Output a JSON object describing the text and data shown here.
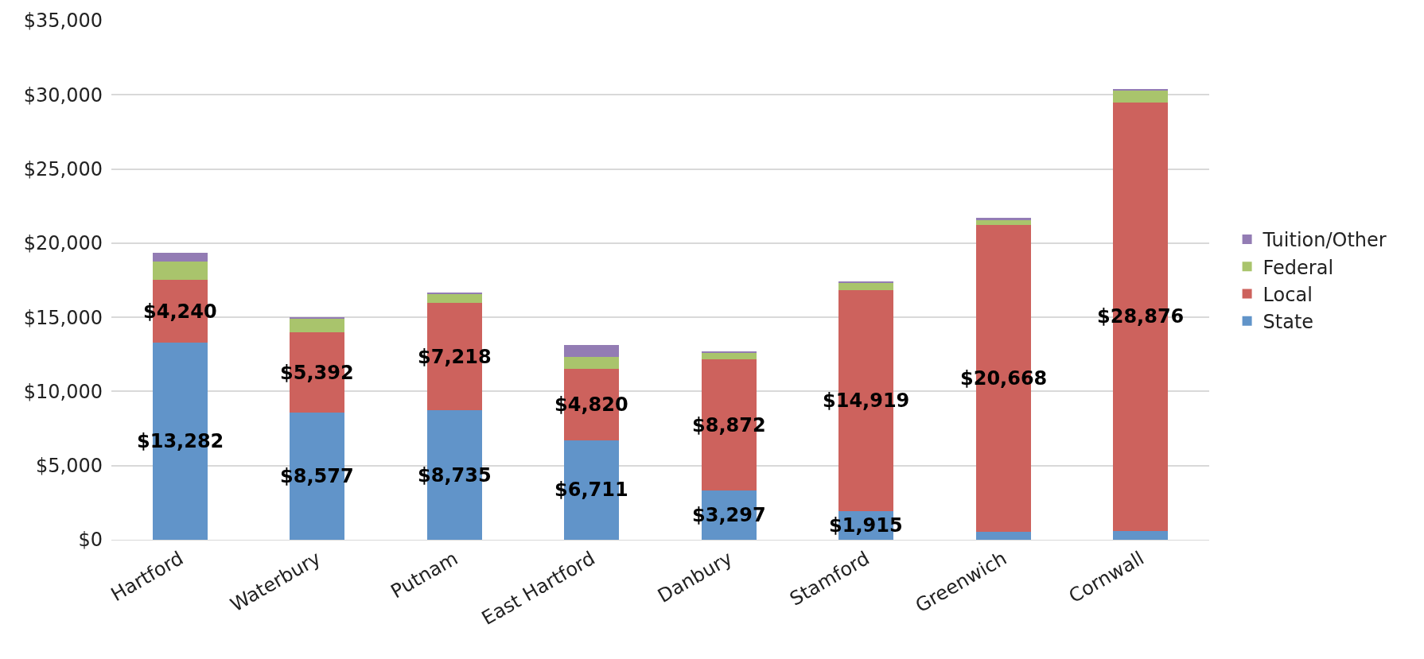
{
  "chart_data": {
    "type": "bar",
    "stacked": true,
    "categories": [
      "Hartford",
      "Waterbury",
      "Putnam",
      "East Hartford",
      "Danbury",
      "Stamford",
      "Greenwich",
      "Cornwall"
    ],
    "series": [
      {
        "name": "State",
        "color": "#6194c9",
        "values": [
          13282,
          8577,
          8735,
          6711,
          3297,
          1915,
          558,
          605
        ],
        "value_labels": [
          "$13,282",
          "$8,577",
          "$8,735",
          "$6,711",
          "$3,297",
          "$1,915",
          null,
          null
        ]
      },
      {
        "name": "Local",
        "color": "#cd625d",
        "values": [
          4240,
          5392,
          7218,
          4820,
          8872,
          14919,
          20668,
          28876
        ],
        "value_labels": [
          "$4,240",
          "$5,392",
          "$7,218",
          "$4,820",
          "$8,872",
          "$14,919",
          "$20,668",
          "$28,876"
        ]
      },
      {
        "name": "Federal",
        "color": "#a9c46c",
        "values": [
          1220,
          930,
          600,
          800,
          430,
          500,
          330,
          850
        ]
      },
      {
        "name": "Tuition/Other",
        "color": "#937cb4",
        "values": [
          590,
          110,
          140,
          780,
          100,
          70,
          140,
          50
        ]
      }
    ],
    "ylim": [
      0,
      35000
    ],
    "yticks": [
      {
        "value": 0,
        "label": "$0"
      },
      {
        "value": 5000,
        "label": "$5,000"
      },
      {
        "value": 10000,
        "label": "$10,000"
      },
      {
        "value": 15000,
        "label": "$15,000"
      },
      {
        "value": 20000,
        "label": "$20,000"
      },
      {
        "value": 25000,
        "label": "$25,000"
      },
      {
        "value": 30000,
        "label": "$30,000"
      },
      {
        "value": 35000,
        "label": "$35,000"
      }
    ],
    "grid": "y",
    "legend": "right"
  }
}
